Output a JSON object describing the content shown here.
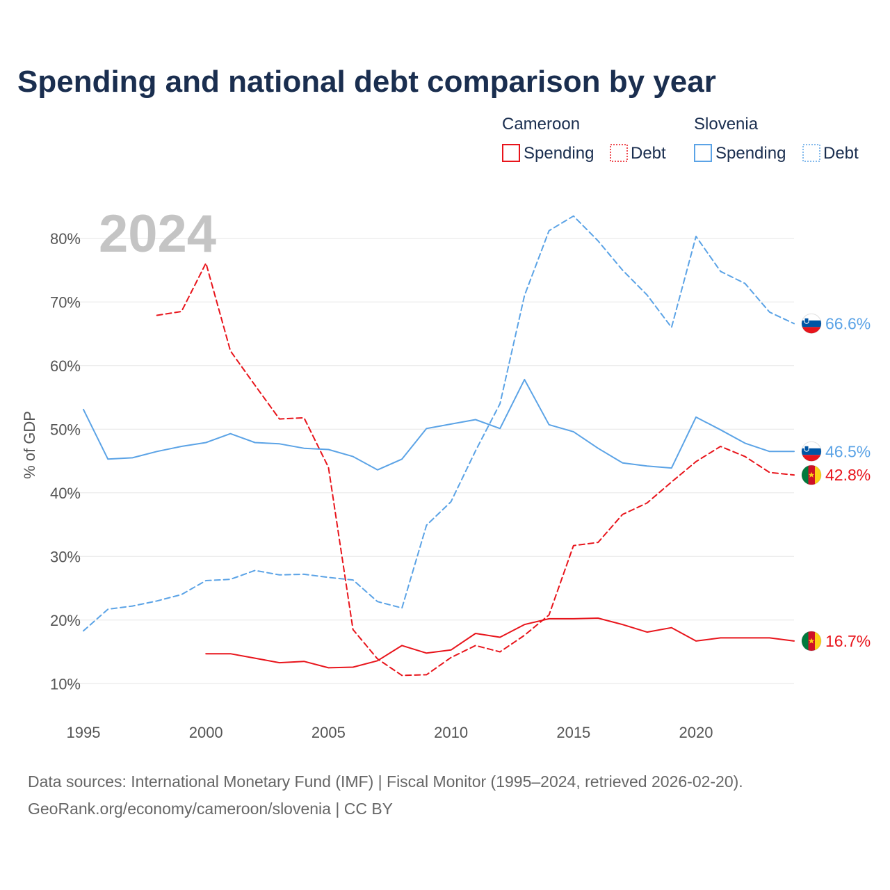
{
  "chart_data": {
    "type": "line",
    "title": "Spending and national debt comparison by year",
    "watermark_year": "2024",
    "ylabel": "% of GDP",
    "xlabel": "",
    "xlim": [
      1995,
      2024
    ],
    "ylim": [
      5,
      85
    ],
    "x_ticks": [
      1995,
      2000,
      2005,
      2010,
      2015,
      2020
    ],
    "y_ticks": [
      {
        "value": 10,
        "label": "10%"
      },
      {
        "value": 20,
        "label": "20%"
      },
      {
        "value": 30,
        "label": "30%"
      },
      {
        "value": 40,
        "label": "40%"
      },
      {
        "value": 50,
        "label": "50%"
      },
      {
        "value": 60,
        "label": "60%"
      },
      {
        "value": 70,
        "label": "70%"
      },
      {
        "value": 80,
        "label": "80%"
      }
    ],
    "grid": true,
    "legend": {
      "position": "top-right",
      "groups": [
        {
          "country": "Cameroon",
          "color": "#e8141b",
          "items": [
            "Spending",
            "Debt"
          ]
        },
        {
          "country": "Slovenia",
          "color": "#5ba3e6",
          "items": [
            "Spending",
            "Debt"
          ]
        }
      ]
    },
    "series": [
      {
        "name": "Cameroon Spending",
        "country": "Cameroon",
        "metric": "Spending",
        "color": "#e8141b",
        "dash": "solid",
        "flag": "cameroon",
        "end_label": "16.7%",
        "x": [
          2000,
          2001,
          2002,
          2003,
          2004,
          2005,
          2006,
          2007,
          2008,
          2009,
          2010,
          2011,
          2012,
          2013,
          2014,
          2015,
          2016,
          2017,
          2018,
          2019,
          2020,
          2021,
          2022,
          2023,
          2024
        ],
        "values": [
          14.7,
          14.7,
          14.0,
          13.3,
          13.5,
          12.5,
          12.6,
          13.6,
          16.0,
          14.8,
          15.3,
          17.9,
          17.3,
          19.3,
          20.2,
          20.2,
          20.3,
          19.3,
          18.1,
          18.8,
          16.7,
          17.2,
          17.2,
          17.2,
          16.7
        ]
      },
      {
        "name": "Cameroon Debt",
        "country": "Cameroon",
        "metric": "Debt",
        "color": "#e8141b",
        "dash": "dashed",
        "flag": "cameroon",
        "end_label": "42.8%",
        "x": [
          1998,
          1999,
          2000,
          2001,
          2002,
          2003,
          2004,
          2005,
          2006,
          2007,
          2008,
          2009,
          2010,
          2011,
          2012,
          2013,
          2014,
          2015,
          2016,
          2017,
          2018,
          2019,
          2020,
          2021,
          2022,
          2023,
          2024
        ],
        "values": [
          67.9,
          68.5,
          76.1,
          62.3,
          56.9,
          51.6,
          51.8,
          44.0,
          18.5,
          13.9,
          11.3,
          11.4,
          14.1,
          16.0,
          15.0,
          17.6,
          20.8,
          31.7,
          32.2,
          36.6,
          38.4,
          41.7,
          44.9,
          47.3,
          45.7,
          43.2,
          42.8
        ]
      },
      {
        "name": "Slovenia Spending",
        "country": "Slovenia",
        "metric": "Spending",
        "color": "#5ba3e6",
        "dash": "solid",
        "flag": "slovenia",
        "end_label": "46.5%",
        "x": [
          1995,
          1996,
          1997,
          1998,
          1999,
          2000,
          2001,
          2002,
          2003,
          2004,
          2005,
          2006,
          2007,
          2008,
          2009,
          2010,
          2011,
          2012,
          2013,
          2014,
          2015,
          2016,
          2017,
          2018,
          2019,
          2020,
          2021,
          2022,
          2023,
          2024
        ],
        "values": [
          53.1,
          45.3,
          45.5,
          46.5,
          47.3,
          47.9,
          49.3,
          47.9,
          47.7,
          47.0,
          46.8,
          45.7,
          43.6,
          45.3,
          50.1,
          50.8,
          51.5,
          50.1,
          57.8,
          50.7,
          49.6,
          47.0,
          44.7,
          44.2,
          43.9,
          51.9,
          49.9,
          47.8,
          46.5,
          46.5
        ]
      },
      {
        "name": "Slovenia Debt",
        "country": "Slovenia",
        "metric": "Debt",
        "color": "#5ba3e6",
        "dash": "dashed",
        "flag": "slovenia",
        "end_label": "66.6%",
        "x": [
          1995,
          1996,
          1997,
          1998,
          1999,
          2000,
          2001,
          2002,
          2003,
          2004,
          2005,
          2006,
          2007,
          2008,
          2009,
          2010,
          2011,
          2012,
          2013,
          2014,
          2015,
          2016,
          2017,
          2018,
          2019,
          2020,
          2021,
          2022,
          2023,
          2024
        ],
        "values": [
          18.3,
          21.7,
          22.2,
          23.0,
          24.0,
          26.2,
          26.4,
          27.8,
          27.1,
          27.2,
          26.7,
          26.3,
          22.9,
          21.9,
          34.9,
          38.6,
          46.6,
          54.0,
          71.0,
          81.2,
          83.5,
          79.6,
          75.0,
          71.1,
          66.0,
          80.3,
          74.8,
          72.9,
          68.4,
          66.6
        ]
      }
    ]
  },
  "footer": {
    "line1": "Data sources: International Monetary Fund (IMF) | Fiscal Monitor (1995–2024, retrieved 2026-02-20).",
    "line2": "GeoRank.org/economy/cameroon/slovenia | CC BY"
  }
}
